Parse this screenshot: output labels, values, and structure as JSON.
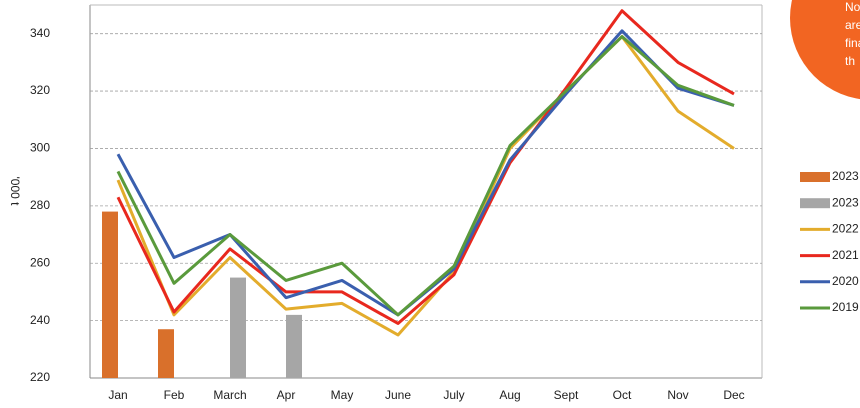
{
  "chart_data": {
    "type": "combo",
    "y_label": "'000 t",
    "note": [
      "Note",
      "are ass",
      "final",
      "th"
    ],
    "categories": [
      "Jan",
      "Feb",
      "March",
      "Apr",
      "May",
      "June",
      "July",
      "Aug",
      "Sept",
      "Oct",
      "Nov",
      "Dec"
    ],
    "ylim": [
      220,
      350
    ],
    "yticks": [
      220,
      240,
      260,
      280,
      300,
      320,
      340
    ],
    "grid": true,
    "series": [
      {
        "name": "2023",
        "type": "bar",
        "color": "#d9702b",
        "values": [
          278,
          237,
          null,
          null,
          null,
          null,
          null,
          null,
          null,
          null,
          null,
          null
        ]
      },
      {
        "name": "2023",
        "type": "bar",
        "color": "#a6a6a6",
        "values": [
          null,
          null,
          255,
          242,
          null,
          null,
          null,
          null,
          null,
          null,
          null,
          null
        ]
      },
      {
        "name": "2022",
        "type": "line",
        "color": "#e3ac2c",
        "values": [
          289,
          242,
          262,
          244,
          246,
          235,
          257,
          300,
          320,
          339,
          313,
          300
        ]
      },
      {
        "name": "2021",
        "type": "line",
        "color": "#e8281e",
        "values": [
          283,
          243,
          265,
          250,
          250,
          239,
          256,
          295,
          321,
          348,
          330,
          319
        ]
      },
      {
        "name": "2020",
        "type": "line",
        "color": "#3a5fae",
        "values": [
          298,
          262,
          270,
          248,
          254,
          242,
          258,
          296,
          319,
          341,
          321,
          315
        ]
      },
      {
        "name": "2019",
        "type": "line",
        "color": "#5a9a3c",
        "values": [
          292,
          253,
          270,
          254,
          260,
          242,
          259,
          301,
          320,
          339,
          322,
          315
        ]
      }
    ]
  }
}
